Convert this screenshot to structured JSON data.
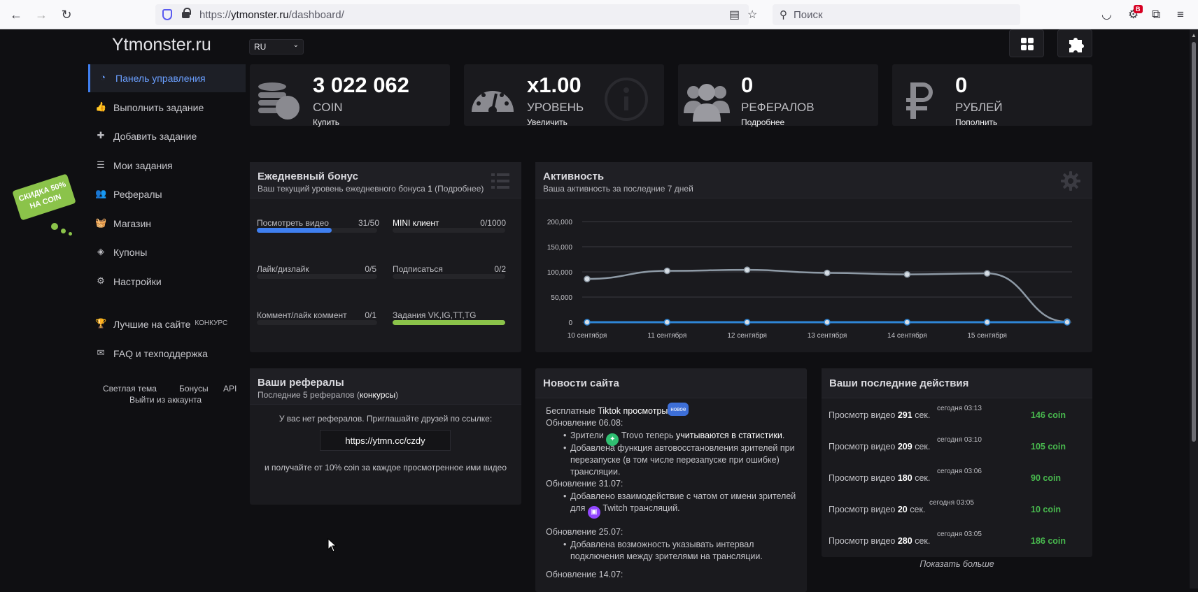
{
  "browser": {
    "url_prefix": "https://",
    "url_host": "ytmonster.ru",
    "url_path": "/dashboard/",
    "search_placeholder": "Поиск",
    "badge": "B"
  },
  "site": {
    "logo": "Ytmonster.ru",
    "lang": "RU"
  },
  "sidebar": {
    "items": [
      {
        "label": "Панель управления",
        "icon": "dashboard-icon"
      },
      {
        "label": "Выполнить задание",
        "icon": "thumbs-up-icon"
      },
      {
        "label": "Добавить задание",
        "icon": "plus-icon"
      },
      {
        "label": "Мои задания",
        "icon": "list-icon"
      },
      {
        "label": "Рефералы",
        "icon": "users-icon"
      },
      {
        "label": "Магазин",
        "icon": "basket-icon"
      },
      {
        "label": "Купоны",
        "icon": "tag-icon"
      },
      {
        "label": "Настройки",
        "icon": "cogs-icon"
      },
      {
        "label": "Лучшие на сайте",
        "sup": "КОНКУРС",
        "icon": "trophy-icon"
      },
      {
        "label": "FAQ и техподдержка",
        "icon": "envelope-icon"
      }
    ],
    "footer": {
      "theme": "Светлая тема",
      "bonuses": "Бонусы",
      "api": "API",
      "logout": "Выйти из аккаунта"
    }
  },
  "promo": {
    "line1": "СКИДКА 50%",
    "line2": "НА COIN"
  },
  "stats": [
    {
      "value": "3 022 062",
      "caption": "COIN",
      "link": "Купить"
    },
    {
      "value": "x1.00",
      "caption": "УРОВЕНЬ",
      "link": "Увеличить"
    },
    {
      "value": "0",
      "caption": "РЕФЕРАЛОВ",
      "link": "Подробнее"
    },
    {
      "value": "0",
      "caption": "РУБЛЕЙ",
      "link": "Пополнить"
    }
  ],
  "bonus": {
    "title": "Ежедневный бонус",
    "subtitle_pre": "Ваш текущий уровень ежедневного бонуса ",
    "subtitle_level": "1",
    "subtitle_post": " (Подробнее)",
    "tasks": [
      {
        "label": "Посмотреть видео",
        "count": "31/50",
        "progress": 0.62,
        "color": "#3f7ff0"
      },
      {
        "label": "MINI клиент",
        "count": "0/1000",
        "progress": 0,
        "color": "#3f7ff0"
      },
      {
        "label": "Лайк/дизлайк",
        "count": "0/5",
        "progress": 0,
        "color": "#3f7ff0"
      },
      {
        "label": "Подписаться",
        "count": "0/2",
        "progress": 0,
        "color": "#3f7ff0"
      },
      {
        "label": "Коммент/лайк коммент",
        "count": "0/1",
        "progress": 0,
        "color": "#3f7ff0"
      },
      {
        "label": "Задания VK,IG,TT,TG",
        "count": "",
        "progress": 1,
        "color": "#8bc34a"
      }
    ]
  },
  "activity": {
    "title": "Активность",
    "subtitle": "Ваша активность за последние 7 дней"
  },
  "chart_data": {
    "type": "line",
    "x": [
      "10 сентября",
      "11 сентября",
      "12 сентября",
      "13 сентября",
      "14 сентября",
      "15 сентября",
      ""
    ],
    "y_ticks": [
      "200,000",
      "150,000",
      "100,000",
      "50,000",
      "0"
    ],
    "ylim": [
      0,
      200000
    ],
    "series": [
      {
        "values": [
          86000,
          102000,
          104000,
          98000,
          95000,
          97000,
          1000
        ],
        "color": "#8e9aa6"
      },
      {
        "values": [
          0,
          0,
          0,
          0,
          0,
          0,
          0
        ],
        "color": "#2f86d6"
      }
    ],
    "grid": true
  },
  "referrals": {
    "title": "Ваши рефералы",
    "subtitle_pre": "Последние 5 рефералов (",
    "subtitle_link": "конкурсы",
    "subtitle_post": ")",
    "empty": "У вас нет рефералов. Приглашайте друзей по ссылке:",
    "link": "https://ytmn.cc/czdy",
    "note": "и получайте от 10% coin за каждое просмотренное ими видео"
  },
  "news": {
    "title": "Новости сайта",
    "free_pre": "Бесплатные ",
    "free_bold": "Tiktok просмотры",
    "new_badge": "новое",
    "u1": "Обновление 06.08:",
    "u1_b1_pre": "Зрители ",
    "u1_b1_mid": " Trovo теперь ",
    "u1_b1_bold": "учитываются в статистики",
    "u1_b1_post": ".",
    "u1_b2_l1": "Добавлена функция автовосстановления зрителей при",
    "u1_b2_l2": "перезапуске (в том числе перезапуске при ошибке)",
    "u1_b2_l3": "трансляции.",
    "u2": "Обновление 31.07:",
    "u2_b1_l1": "Добавлено взаимодействие с чатом от имени зрителей",
    "u2_b1_l2_pre": "для ",
    "u2_b1_l2_post": " Twitch трансляций.",
    "u3": "Обновление 25.07:",
    "u3_b1_l1": "Добавлена возможность указывать интервал",
    "u3_b1_l2": "подключения между зрителями на трансляции.",
    "u4": "Обновление 14.07:"
  },
  "recent": {
    "title": "Ваши последние действия",
    "rows": [
      {
        "pre": "Просмотр видео ",
        "sec": "291",
        "post": " сек.",
        "time": "сегодня 03:13",
        "coin": "146 coin"
      },
      {
        "pre": "Просмотр видео ",
        "sec": "209",
        "post": " сек.",
        "time": "сегодня 03:10",
        "coin": "105 coin"
      },
      {
        "pre": "Просмотр видео ",
        "sec": "180",
        "post": " сек.",
        "time": "сегодня 03:06",
        "coin": "90 coin"
      },
      {
        "pre": "Просмотр видео ",
        "sec": "20",
        "post": " сек.",
        "time": "сегодня 03:05",
        "coin": "10 coin"
      },
      {
        "pre": "Просмотр видео ",
        "sec": "280",
        "post": " сек.",
        "time": "сегодня 03:05",
        "coin": "186 coin"
      }
    ],
    "more": "Показать больше"
  }
}
